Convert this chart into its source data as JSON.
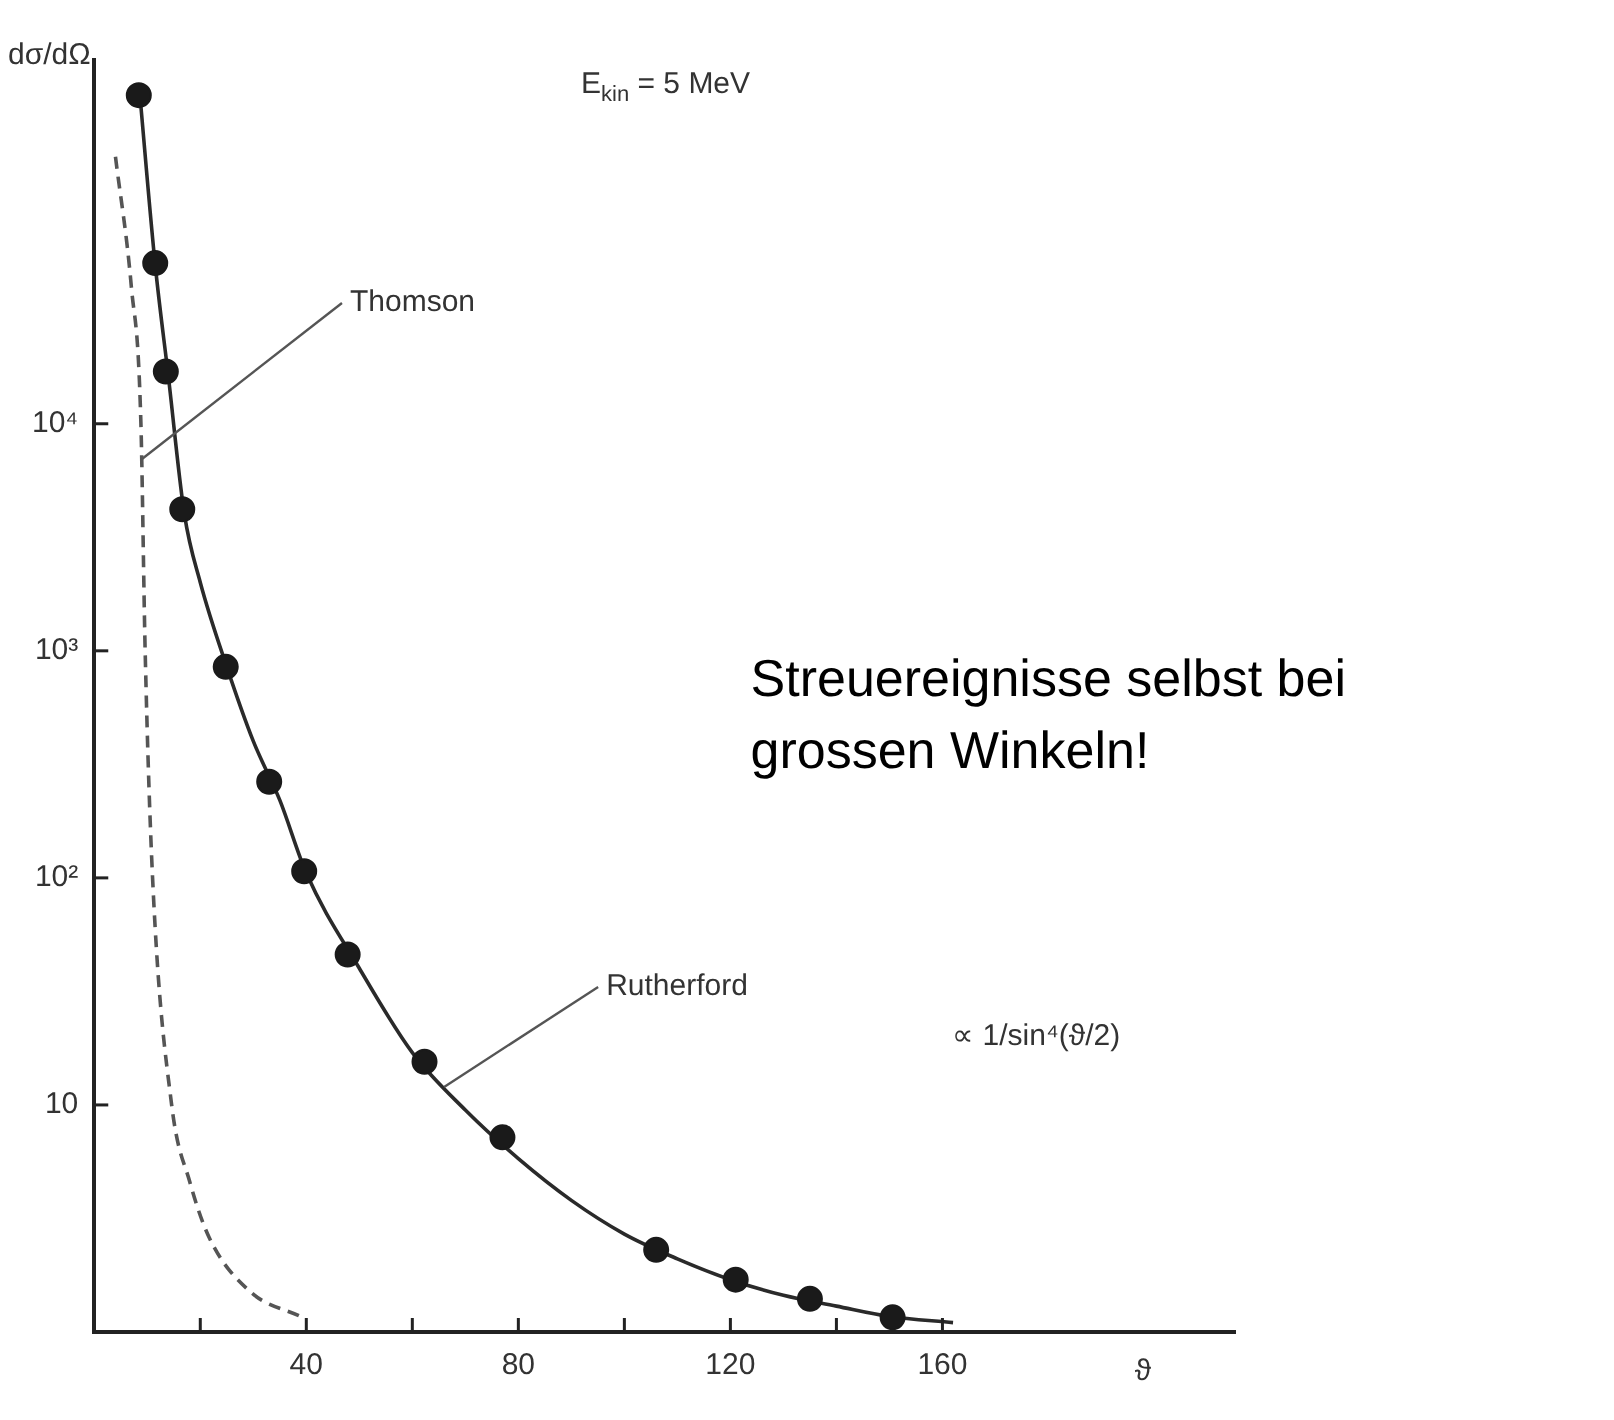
{
  "chart_data": {
    "type": "scatter",
    "ylabel": "dσ/dΩ",
    "xlabel": "ϑ",
    "xlim": [
      0,
      215
    ],
    "xticks": [
      {
        "value": 20,
        "label": null
      },
      40,
      {
        "value": 60,
        "label": null
      },
      80,
      {
        "value": 100,
        "label": null
      },
      120,
      {
        "value": 140,
        "label": null
      },
      160
    ],
    "ylim": [
      1,
      400000
    ],
    "yticks": [
      10,
      {
        "value": 100,
        "label": "10²"
      },
      {
        "value": 1000,
        "label": "10³"
      },
      {
        "value": 10000,
        "label": "10⁴"
      }
    ],
    "log": "y",
    "grid": false,
    "legend": false,
    "series": [
      {
        "type": "scatter",
        "marker": "circle",
        "color": "#1a1a1a",
        "x": [
          8.4,
          11.5,
          13.5,
          16.6,
          24.8,
          33,
          39.6,
          47.8,
          62.3,
          77,
          106,
          121,
          135,
          150.6
        ],
        "values": [
          280000,
          51000,
          17000,
          4200,
          850,
          265,
          107,
          46,
          15.5,
          7.2,
          2.3,
          1.7,
          1.4,
          1.16
        ]
      },
      {
        "type": "line",
        "marker": "none",
        "line_style": "solid",
        "color": "#2a2a2a",
        "x": [
          8.5,
          11.5,
          14,
          17,
          20,
          25,
          30,
          35,
          40,
          50,
          60,
          70,
          80,
          90,
          100,
          110,
          120,
          130,
          140,
          150,
          162
        ],
        "values": [
          300000,
          50000,
          16000,
          4000,
          2000,
          850,
          400,
          220,
          105,
          40,
          17,
          9.5,
          5.8,
          3.8,
          2.7,
          2.1,
          1.7,
          1.45,
          1.3,
          1.17,
          1.1
        ]
      },
      {
        "type": "line",
        "marker": "none",
        "line_style": "dashed",
        "color": "#555555",
        "x": [
          4,
          7,
          8.8,
          9.6,
          11,
          14.6,
          18,
          21.7,
          29.5,
          38.9
        ],
        "values": [
          150000,
          40000,
          10000,
          1000,
          100,
          10,
          4.6,
          2.6,
          1.5,
          1.17
        ]
      }
    ],
    "annotations": [
      {
        "text": "Thomson",
        "x": 9,
        "y": 7000
      },
      {
        "text": "Rutherford",
        "x": 66,
        "y": 12
      },
      "∝ 1/sin⁴(ϑ/2)",
      "E$_{kin}$ = 5 MeV",
      "Streuereignisse selbst bei grossen Winkeln!"
    ]
  }
}
